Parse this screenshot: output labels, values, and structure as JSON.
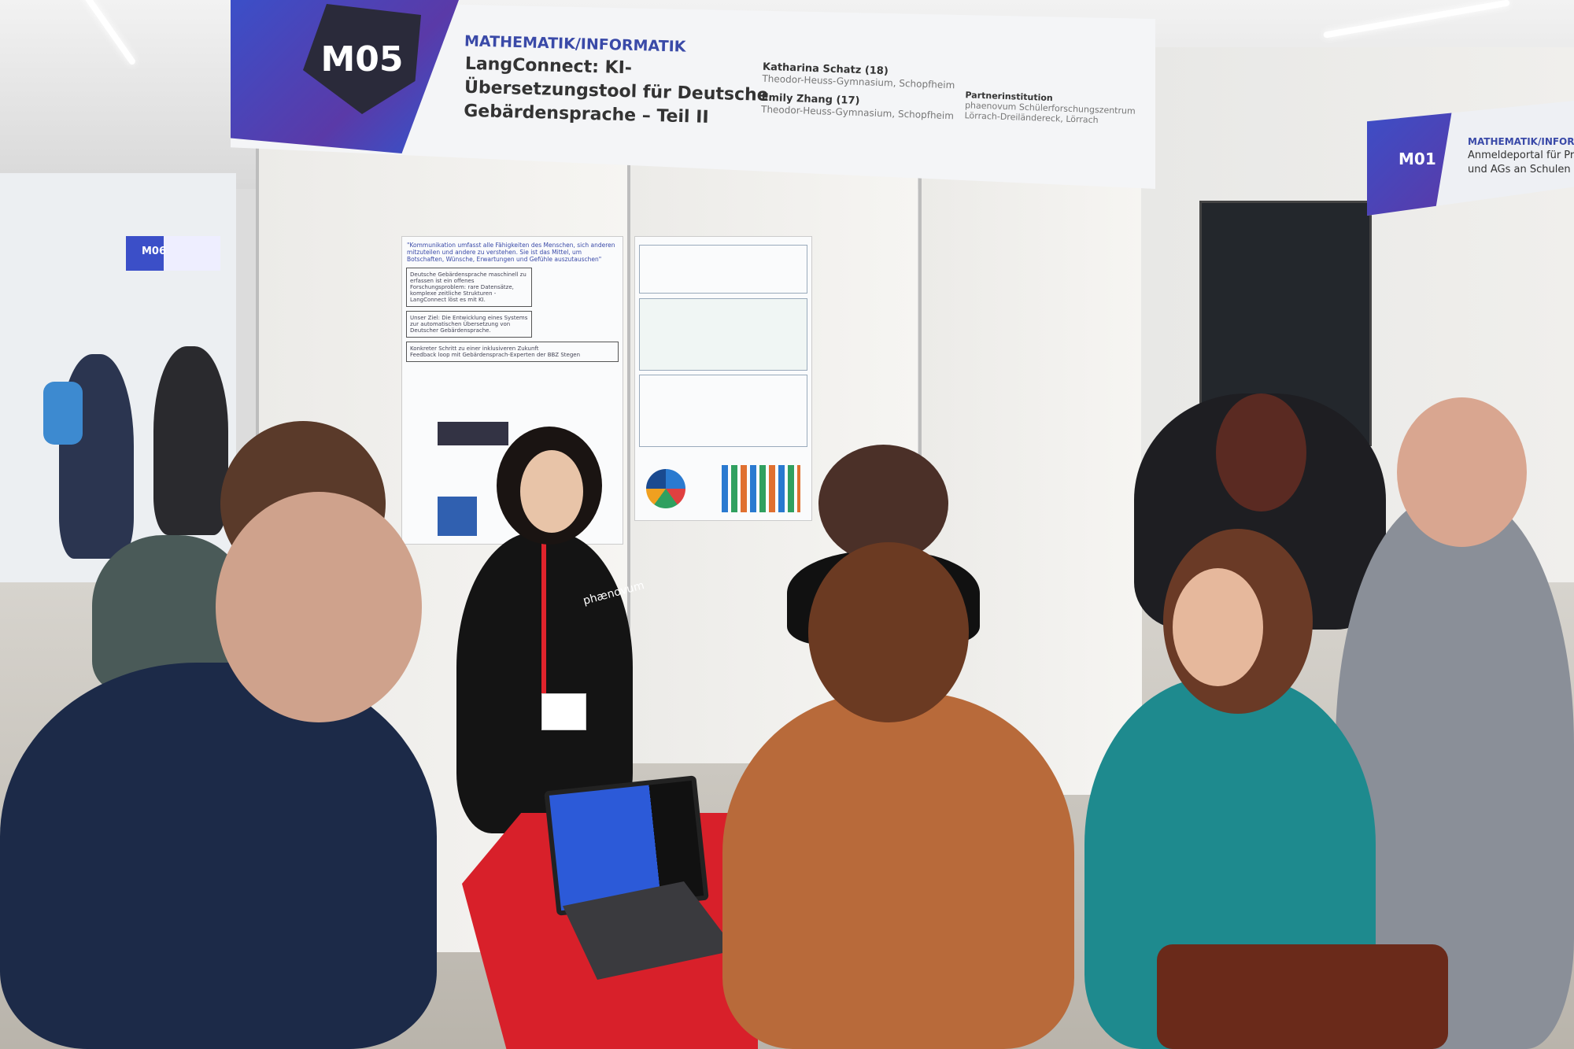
{
  "banner": {
    "code": "M05",
    "category": "MATHEMATIK/INFORMATIK",
    "title": "LangConnect: KI-Übersetzungstool für Deutsche Gebärdensprache – Teil II",
    "authors": [
      {
        "name": "Katharina Schatz (18)",
        "school": "Theodor-Heuss-Gymnasium, Schopfheim"
      },
      {
        "name": "Emily Zhang (17)",
        "school": "Theodor-Heuss-Gymnasium, Schopfheim"
      }
    ],
    "partner_label": "Partnerinstitution",
    "partner_line1": "phaenovum Schülerforschungszentrum",
    "partner_line2": "Lörrach-Dreiländereck, Lörrach"
  },
  "side_sign": {
    "code": "M01",
    "category": "MATHEMATIK/INFORMATIK",
    "title_line1": "Anmeldeportal für Proj",
    "title_line2": "und AGs an Schulen"
  },
  "back_sign": {
    "code": "M06"
  },
  "poster_left": {
    "quote": "\"Kommunikation umfasst alle Fähigkeiten des Menschen, sich anderen mitzuteilen und andere zu verstehen. Sie ist das Mittel, um Botschaften, Wünsche, Erwartungen und Gefühle auszutauschen\"",
    "problem": "Deutsche Gebärdensprache maschinell zu erfassen ist ein offenes Forschungsproblem: rare Datensätze, komplexe zeitliche Strukturen - LangConnect löst es mit KI.",
    "goal": "Unser Ziel: Die Entwicklung eines Systems zur automatischen Übersetzung von Deutscher Gebärdensprache.",
    "bullets": [
      "Konkreter Schritt zu einer inklusiveren Zukunft",
      "Feedback loop mit Gebärdensprach-Experten der BBZ Stegen"
    ]
  },
  "shirt_text": "phænovum",
  "colors": {
    "banner_blue": "#3b4fc8",
    "banner_purple": "#5a3aa8",
    "table_red": "#d8202a",
    "lanyard_red": "#e0242c"
  }
}
